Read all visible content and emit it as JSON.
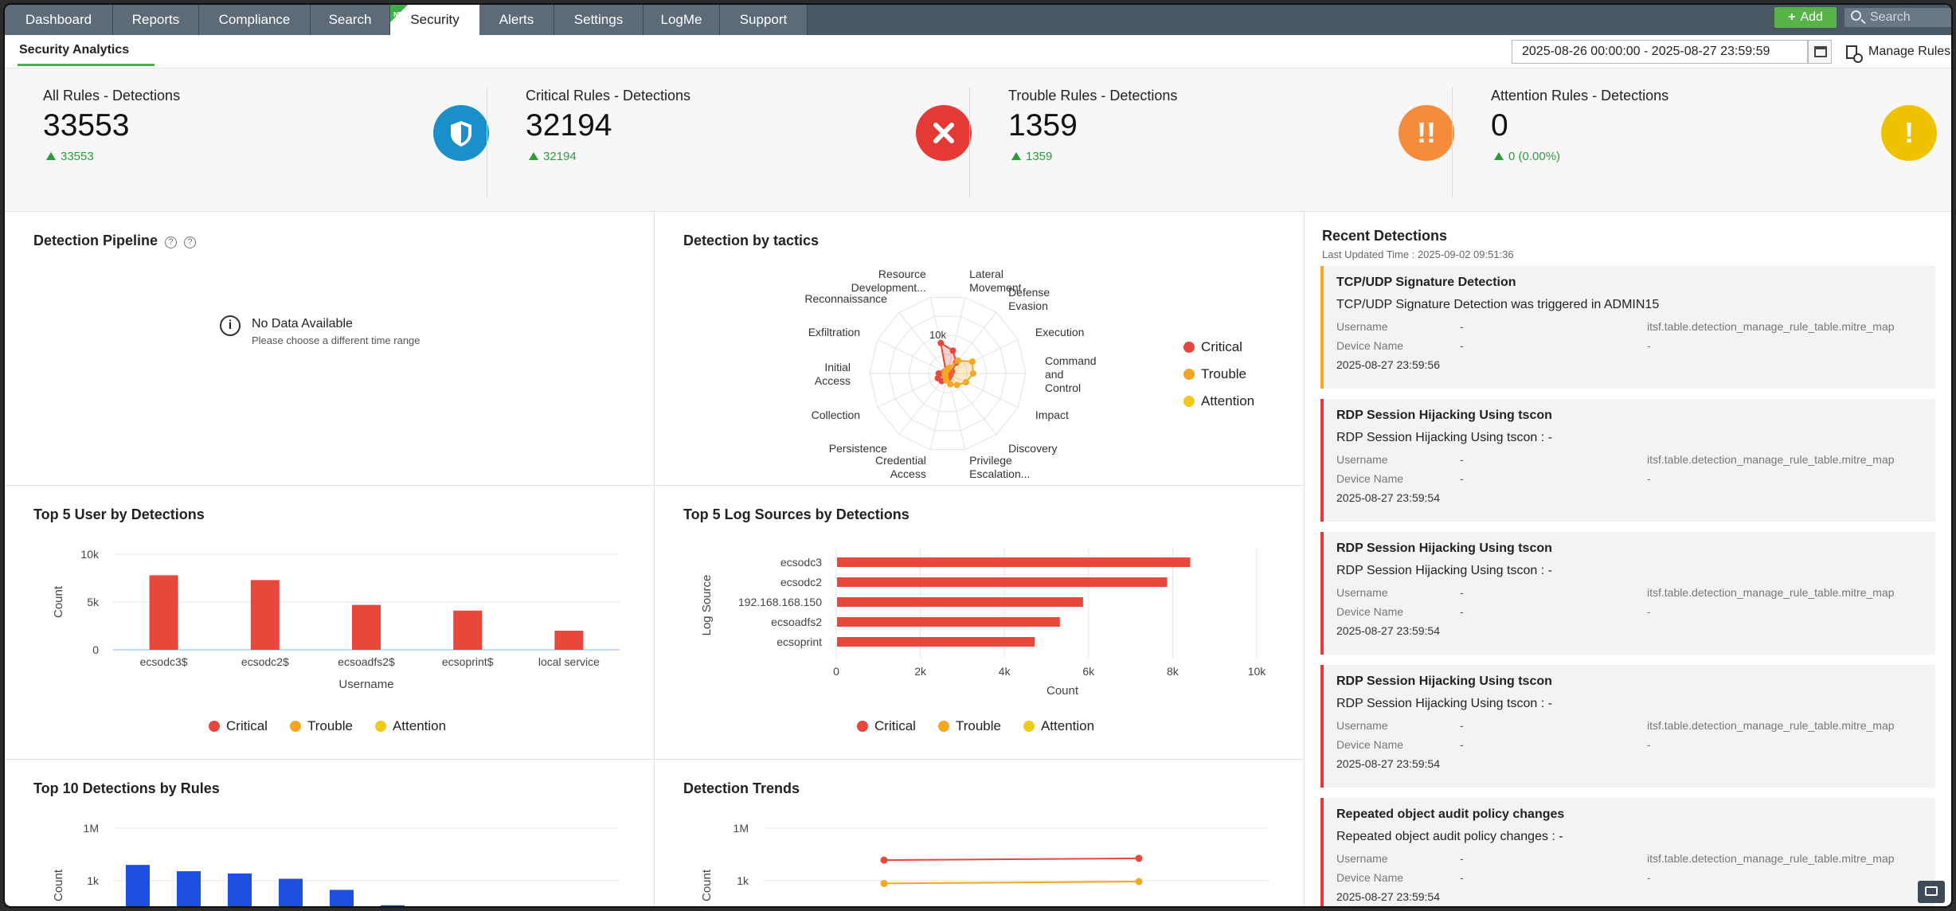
{
  "nav": {
    "tabs": [
      {
        "label": "Dashboard"
      },
      {
        "label": "Reports"
      },
      {
        "label": "Compliance"
      },
      {
        "label": "Search"
      },
      {
        "label": "Security",
        "badge": "NEW"
      },
      {
        "label": "Alerts"
      },
      {
        "label": "Settings"
      },
      {
        "label": "LogMe"
      },
      {
        "label": "Support"
      }
    ],
    "active_tab": "Security",
    "add_label": "Add",
    "search_placeholder": "Search"
  },
  "subheader": {
    "tab": "Security Analytics",
    "date_range": "2025-08-26 00:00:00 - 2025-08-27 23:59:59",
    "manage_label": "Manage Rules"
  },
  "kpis": [
    {
      "label": "All Rules - Detections",
      "value": "33553",
      "delta": "33553",
      "icon": "shield-icon",
      "color": "#1a8fc9"
    },
    {
      "label": "Critical Rules - Detections",
      "value": "32194",
      "delta": "32194",
      "icon": "close-icon",
      "color": "#e53935"
    },
    {
      "label": "Trouble Rules - Detections",
      "value": "1359",
      "delta": "1359",
      "icon": "double-exclamation-icon",
      "color": "#f58c3c"
    },
    {
      "label": "Attention Rules - Detections",
      "value": "0",
      "delta": "0 (0.00%)",
      "icon": "exclamation-icon",
      "color": "#f0c300"
    }
  ],
  "colors": {
    "critical": "#e8473c",
    "trouble": "#f5a623",
    "attention": "#f0c91c",
    "blue": "#1f4fe0"
  },
  "legend": [
    "Critical",
    "Trouble",
    "Attention"
  ],
  "pipeline": {
    "title": "Detection Pipeline",
    "nodata_title": "No Data Available",
    "nodata_sub": "Please choose a different time range"
  },
  "tactics": {
    "title": "Detection by tactics",
    "chart_data": {
      "type": "radar",
      "axes": [
        "Lateral Movement",
        "Defense Evasion",
        "Execution",
        "Command and Control",
        "Impact",
        "Discovery",
        "Privilege Escalation...",
        "Credential Access",
        "Persistence",
        "Collection",
        "Initial Access",
        "Exfiltration",
        "Reconnaissance",
        "Resource Development..."
      ],
      "axis_labels": [
        [
          "Lateral",
          "Movement"
        ],
        [
          "Defense",
          "Evasion"
        ],
        [
          "Execution"
        ],
        [
          "Command",
          "and",
          "Control"
        ],
        [
          "Impact"
        ],
        [
          "Discovery"
        ],
        [
          "Privilege",
          "Escalation..."
        ],
        [
          "Credential",
          "Access"
        ],
        [
          "Persistence"
        ],
        [
          "Collection"
        ],
        [
          "Initial",
          "Access"
        ],
        [
          "Exfiltration"
        ],
        [
          "Reconnaissance"
        ],
        [
          "Resource",
          "Development..."
        ]
      ],
      "radial_ticks": [
        "0",
        "10k"
      ],
      "rmax": 20000,
      "series": [
        {
          "name": "Critical",
          "values": [
            6000,
            3500,
            1200,
            300,
            200,
            500,
            1200,
            1500,
            2500,
            2800,
            2300,
            1000,
            400,
            8000
          ]
        },
        {
          "name": "Trouble",
          "values": [
            1500,
            4200,
            7000,
            6500,
            5200,
            3800,
            2800,
            1800,
            900,
            400,
            200,
            100,
            50,
            600
          ]
        },
        {
          "name": "Attention",
          "values": [
            0,
            0,
            0,
            0,
            0,
            0,
            0,
            0,
            0,
            0,
            0,
            0,
            0,
            0
          ]
        }
      ]
    }
  },
  "top_users": {
    "title": "Top 5 User by Detections",
    "chart_data": {
      "type": "bar",
      "categories": [
        "ecsodc3$",
        "ecsodc2$",
        "ecsoadfs2$",
        "ecsoprint$",
        "local service"
      ],
      "series": [
        {
          "name": "Critical",
          "values": [
            7800,
            7300,
            4700,
            4100,
            2000
          ]
        }
      ],
      "xlabel": "Username",
      "ylabel": "Count",
      "yticks": [
        "0",
        "5k",
        "10k"
      ],
      "ylim": [
        0,
        10000
      ]
    }
  },
  "top_sources": {
    "title": "Top 5 Log Sources by Detections",
    "chart_data": {
      "type": "bar",
      "orientation": "horizontal",
      "categories": [
        "ecsodc3",
        "ecsodc2",
        "192.168.168.150",
        "ecsoadfs2",
        "ecsoprint"
      ],
      "series": [
        {
          "name": "Critical",
          "values": [
            8400,
            7850,
            5850,
            5300,
            4700
          ]
        }
      ],
      "xlabel": "Count",
      "ylabel": "Log Source",
      "xticks": [
        "0",
        "2k",
        "4k",
        "6k",
        "8k",
        "10k"
      ],
      "xlim": [
        0,
        10000
      ]
    }
  },
  "top_rules": {
    "title": "Top 10 Detections by Rules",
    "chart_data": {
      "type": "bar",
      "scale": "log",
      "ylabel": "Count",
      "yticks": [
        "1k",
        "1M"
      ],
      "values": [
        8000,
        3500,
        2600,
        1300,
        300,
        40,
        35
      ],
      "series_color": "#1f4fe0"
    }
  },
  "trends": {
    "title": "Detection Trends",
    "chart_data": {
      "type": "line",
      "scale": "log",
      "ylabel": "Count",
      "yticks": [
        "1k",
        "1M"
      ],
      "series": [
        {
          "name": "Critical",
          "values": [
            15000,
            19000
          ]
        },
        {
          "name": "Trouble",
          "values": [
            700,
            900
          ]
        }
      ]
    }
  },
  "recent": {
    "title": "Recent Detections",
    "updated": "Last Updated Time : 2025-09-02 09:51:36",
    "row_labels": {
      "username": "Username",
      "device": "Device Name"
    },
    "items": [
      {
        "title": "TCP/UDP Signature Detection",
        "desc": "TCP/UDP Signature Detection was triggered in ADMIN15",
        "user": "-",
        "mitre": "itsf.table.detection_manage_rule_table.mitre_map",
        "device": "-",
        "device2": "-",
        "time": "2025-08-27 23:59:56",
        "severity": "trouble"
      },
      {
        "title": "RDP Session Hijacking Using tscon",
        "desc": "RDP Session Hijacking Using tscon : -",
        "user": "-",
        "mitre": "itsf.table.detection_manage_rule_table.mitre_map",
        "device": "-",
        "device2": "-",
        "time": "2025-08-27 23:59:54",
        "severity": "critical"
      },
      {
        "title": "RDP Session Hijacking Using tscon",
        "desc": "RDP Session Hijacking Using tscon : -",
        "user": "-",
        "mitre": "itsf.table.detection_manage_rule_table.mitre_map",
        "device": "-",
        "device2": "-",
        "time": "2025-08-27 23:59:54",
        "severity": "critical"
      },
      {
        "title": "RDP Session Hijacking Using tscon",
        "desc": "RDP Session Hijacking Using tscon : -",
        "user": "-",
        "mitre": "itsf.table.detection_manage_rule_table.mitre_map",
        "device": "-",
        "device2": "-",
        "time": "2025-08-27 23:59:54",
        "severity": "critical"
      },
      {
        "title": "Repeated object audit policy changes",
        "desc": "Repeated object audit policy changes : -",
        "user": "-",
        "mitre": "itsf.table.detection_manage_rule_table.mitre_map",
        "device": "-",
        "device2": "-",
        "time": "2025-08-27 23:59:54",
        "severity": "critical"
      }
    ]
  }
}
